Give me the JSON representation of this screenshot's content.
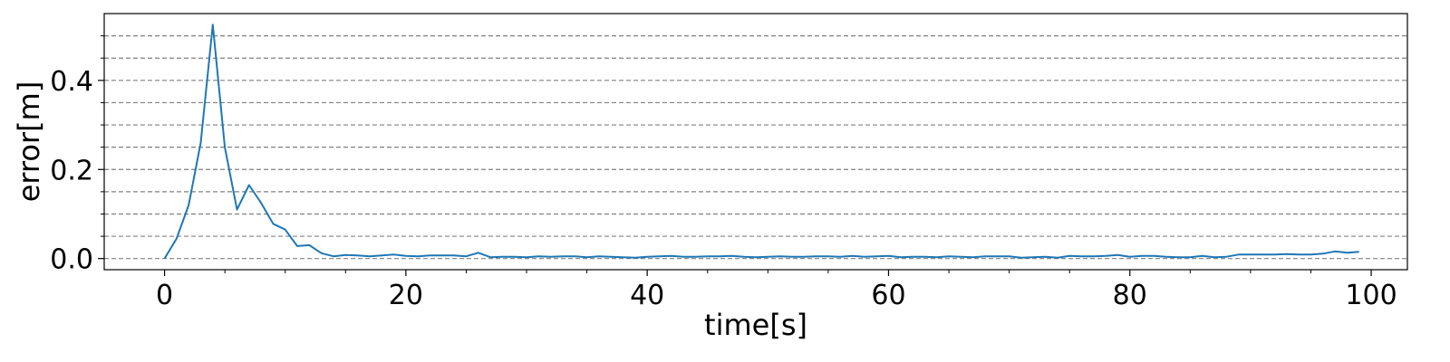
{
  "chart_data": {
    "type": "line",
    "title": "",
    "xlabel": "time[s]",
    "ylabel": "error[m]",
    "xlim": [
      -5,
      103
    ],
    "ylim": [
      -0.025,
      0.55
    ],
    "xticks": [
      0,
      20,
      40,
      60,
      80,
      100
    ],
    "xtick_labels": [
      "0",
      "20",
      "40",
      "60",
      "80",
      "100"
    ],
    "xminor_ticks": [
      5,
      10,
      15,
      25,
      30,
      35,
      45,
      50,
      55,
      65,
      70,
      75,
      85,
      90,
      95
    ],
    "yticks": [
      0.0,
      0.2,
      0.4
    ],
    "ytick_labels": [
      "0.0",
      "0.2",
      "0.4"
    ],
    "yminor_ticks": [
      0.05,
      0.1,
      0.15,
      0.25,
      0.3,
      0.35,
      0.45,
      0.5
    ],
    "grid": "y-major-and-minor-dashed",
    "line_color": "#1f77b4",
    "series": [
      {
        "x": [
          0,
          1,
          2,
          3,
          4,
          5,
          6,
          7,
          8,
          9,
          10,
          11,
          12,
          13,
          14,
          15,
          16,
          17,
          18,
          19,
          20,
          21,
          22,
          23,
          24,
          25,
          26,
          27,
          28,
          29,
          30,
          31,
          32,
          33,
          34,
          35,
          36,
          37,
          38,
          39,
          40,
          41,
          42,
          43,
          44,
          45,
          46,
          47,
          48,
          49,
          50,
          51,
          52,
          53,
          54,
          55,
          56,
          57,
          58,
          59,
          60,
          61,
          62,
          63,
          64,
          65,
          66,
          67,
          68,
          69,
          70,
          71,
          72,
          73,
          74,
          75,
          76,
          77,
          78,
          79,
          80,
          81,
          82,
          83,
          84,
          85,
          86,
          87,
          88,
          89,
          90,
          91,
          92,
          93,
          94,
          95,
          96,
          97,
          98,
          99
        ],
        "values": [
          0.0,
          0.045,
          0.12,
          0.26,
          0.525,
          0.25,
          0.11,
          0.165,
          0.125,
          0.078,
          0.065,
          0.028,
          0.03,
          0.012,
          0.005,
          0.008,
          0.007,
          0.005,
          0.007,
          0.009,
          0.006,
          0.005,
          0.007,
          0.007,
          0.007,
          0.005,
          0.013,
          0.003,
          0.004,
          0.004,
          0.003,
          0.005,
          0.004,
          0.005,
          0.005,
          0.003,
          0.005,
          0.004,
          0.003,
          0.002,
          0.004,
          0.005,
          0.006,
          0.004,
          0.004,
          0.005,
          0.005,
          0.006,
          0.004,
          0.003,
          0.004,
          0.005,
          0.004,
          0.004,
          0.005,
          0.005,
          0.004,
          0.006,
          0.004,
          0.005,
          0.006,
          0.003,
          0.004,
          0.004,
          0.003,
          0.005,
          0.004,
          0.003,
          0.005,
          0.005,
          0.005,
          0.002,
          0.003,
          0.004,
          0.002,
          0.006,
          0.005,
          0.005,
          0.006,
          0.008,
          0.004,
          0.006,
          0.006,
          0.004,
          0.003,
          0.003,
          0.006,
          0.003,
          0.004,
          0.009,
          0.009,
          0.009,
          0.009,
          0.01,
          0.009,
          0.009,
          0.011,
          0.016,
          0.013,
          0.015
        ]
      }
    ]
  }
}
